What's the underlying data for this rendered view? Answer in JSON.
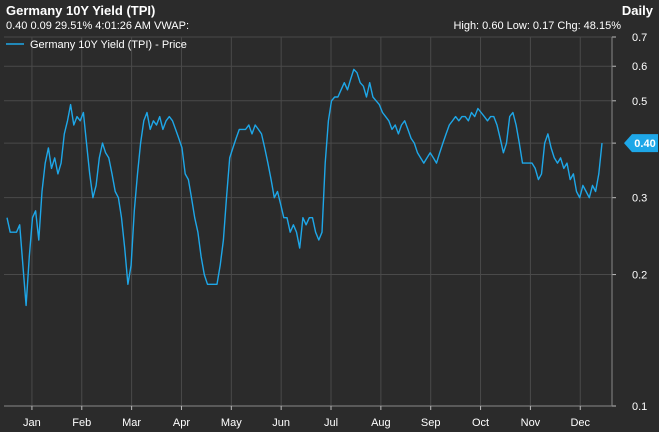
{
  "header": {
    "title": "Germany 10Y Yield (TPI)",
    "period": "Daily",
    "quote": "0.40 0.09 29.51% 4:01:26 AM VWAP:",
    "stats": "High: 0.60 Low: 0.17 Chg: 48.15%"
  },
  "colors": {
    "line": "#1ea7e8",
    "grid": "#4a4a4a",
    "background": "#2b2b2b",
    "badge": "#1ea7e8"
  },
  "chart_data": {
    "type": "line",
    "yscale": "log",
    "ylim": [
      0.1,
      0.7
    ],
    "yticks": [
      "0.7",
      "0.6",
      "0.5",
      "0.4",
      "0.3",
      "0.2",
      "0.1"
    ],
    "ytick_values": [
      0.7,
      0.6,
      0.5,
      0.4,
      0.3,
      0.2,
      0.1
    ],
    "months": [
      "Jan",
      "Feb",
      "Mar",
      "Apr",
      "May",
      "Jun",
      "Jul",
      "Aug",
      "Sep",
      "Oct",
      "Nov",
      "Dec"
    ],
    "series": [
      {
        "name": "Germany 10Y Yield (TPI) - Price",
        "last_label": "0.40",
        "values": [
          0.27,
          0.25,
          0.25,
          0.25,
          0.26,
          0.21,
          0.17,
          0.22,
          0.27,
          0.28,
          0.24,
          0.31,
          0.36,
          0.39,
          0.35,
          0.37,
          0.34,
          0.36,
          0.42,
          0.45,
          0.49,
          0.44,
          0.46,
          0.45,
          0.47,
          0.4,
          0.34,
          0.3,
          0.32,
          0.37,
          0.4,
          0.38,
          0.37,
          0.34,
          0.31,
          0.3,
          0.27,
          0.23,
          0.19,
          0.21,
          0.28,
          0.34,
          0.4,
          0.45,
          0.47,
          0.43,
          0.45,
          0.44,
          0.46,
          0.43,
          0.45,
          0.46,
          0.45,
          0.43,
          0.41,
          0.39,
          0.34,
          0.33,
          0.3,
          0.27,
          0.25,
          0.22,
          0.2,
          0.19,
          0.19,
          0.19,
          0.19,
          0.21,
          0.24,
          0.3,
          0.37,
          0.39,
          0.41,
          0.43,
          0.43,
          0.43,
          0.44,
          0.42,
          0.44,
          0.43,
          0.42,
          0.39,
          0.36,
          0.33,
          0.3,
          0.31,
          0.29,
          0.27,
          0.27,
          0.25,
          0.26,
          0.25,
          0.23,
          0.27,
          0.26,
          0.27,
          0.27,
          0.25,
          0.24,
          0.25,
          0.36,
          0.45,
          0.5,
          0.51,
          0.51,
          0.53,
          0.55,
          0.53,
          0.56,
          0.59,
          0.58,
          0.55,
          0.54,
          0.51,
          0.55,
          0.51,
          0.5,
          0.49,
          0.47,
          0.46,
          0.45,
          0.43,
          0.44,
          0.42,
          0.44,
          0.45,
          0.43,
          0.41,
          0.4,
          0.38,
          0.37,
          0.36,
          0.37,
          0.38,
          0.37,
          0.36,
          0.38,
          0.4,
          0.42,
          0.44,
          0.45,
          0.46,
          0.45,
          0.46,
          0.46,
          0.45,
          0.47,
          0.46,
          0.48,
          0.47,
          0.46,
          0.45,
          0.46,
          0.46,
          0.44,
          0.41,
          0.38,
          0.4,
          0.46,
          0.47,
          0.44,
          0.4,
          0.36,
          0.36,
          0.36,
          0.36,
          0.35,
          0.33,
          0.34,
          0.4,
          0.42,
          0.39,
          0.37,
          0.36,
          0.37,
          0.35,
          0.36,
          0.33,
          0.34,
          0.31,
          0.3,
          0.32,
          0.31,
          0.3,
          0.32,
          0.31,
          0.34,
          0.4
        ]
      }
    ]
  }
}
